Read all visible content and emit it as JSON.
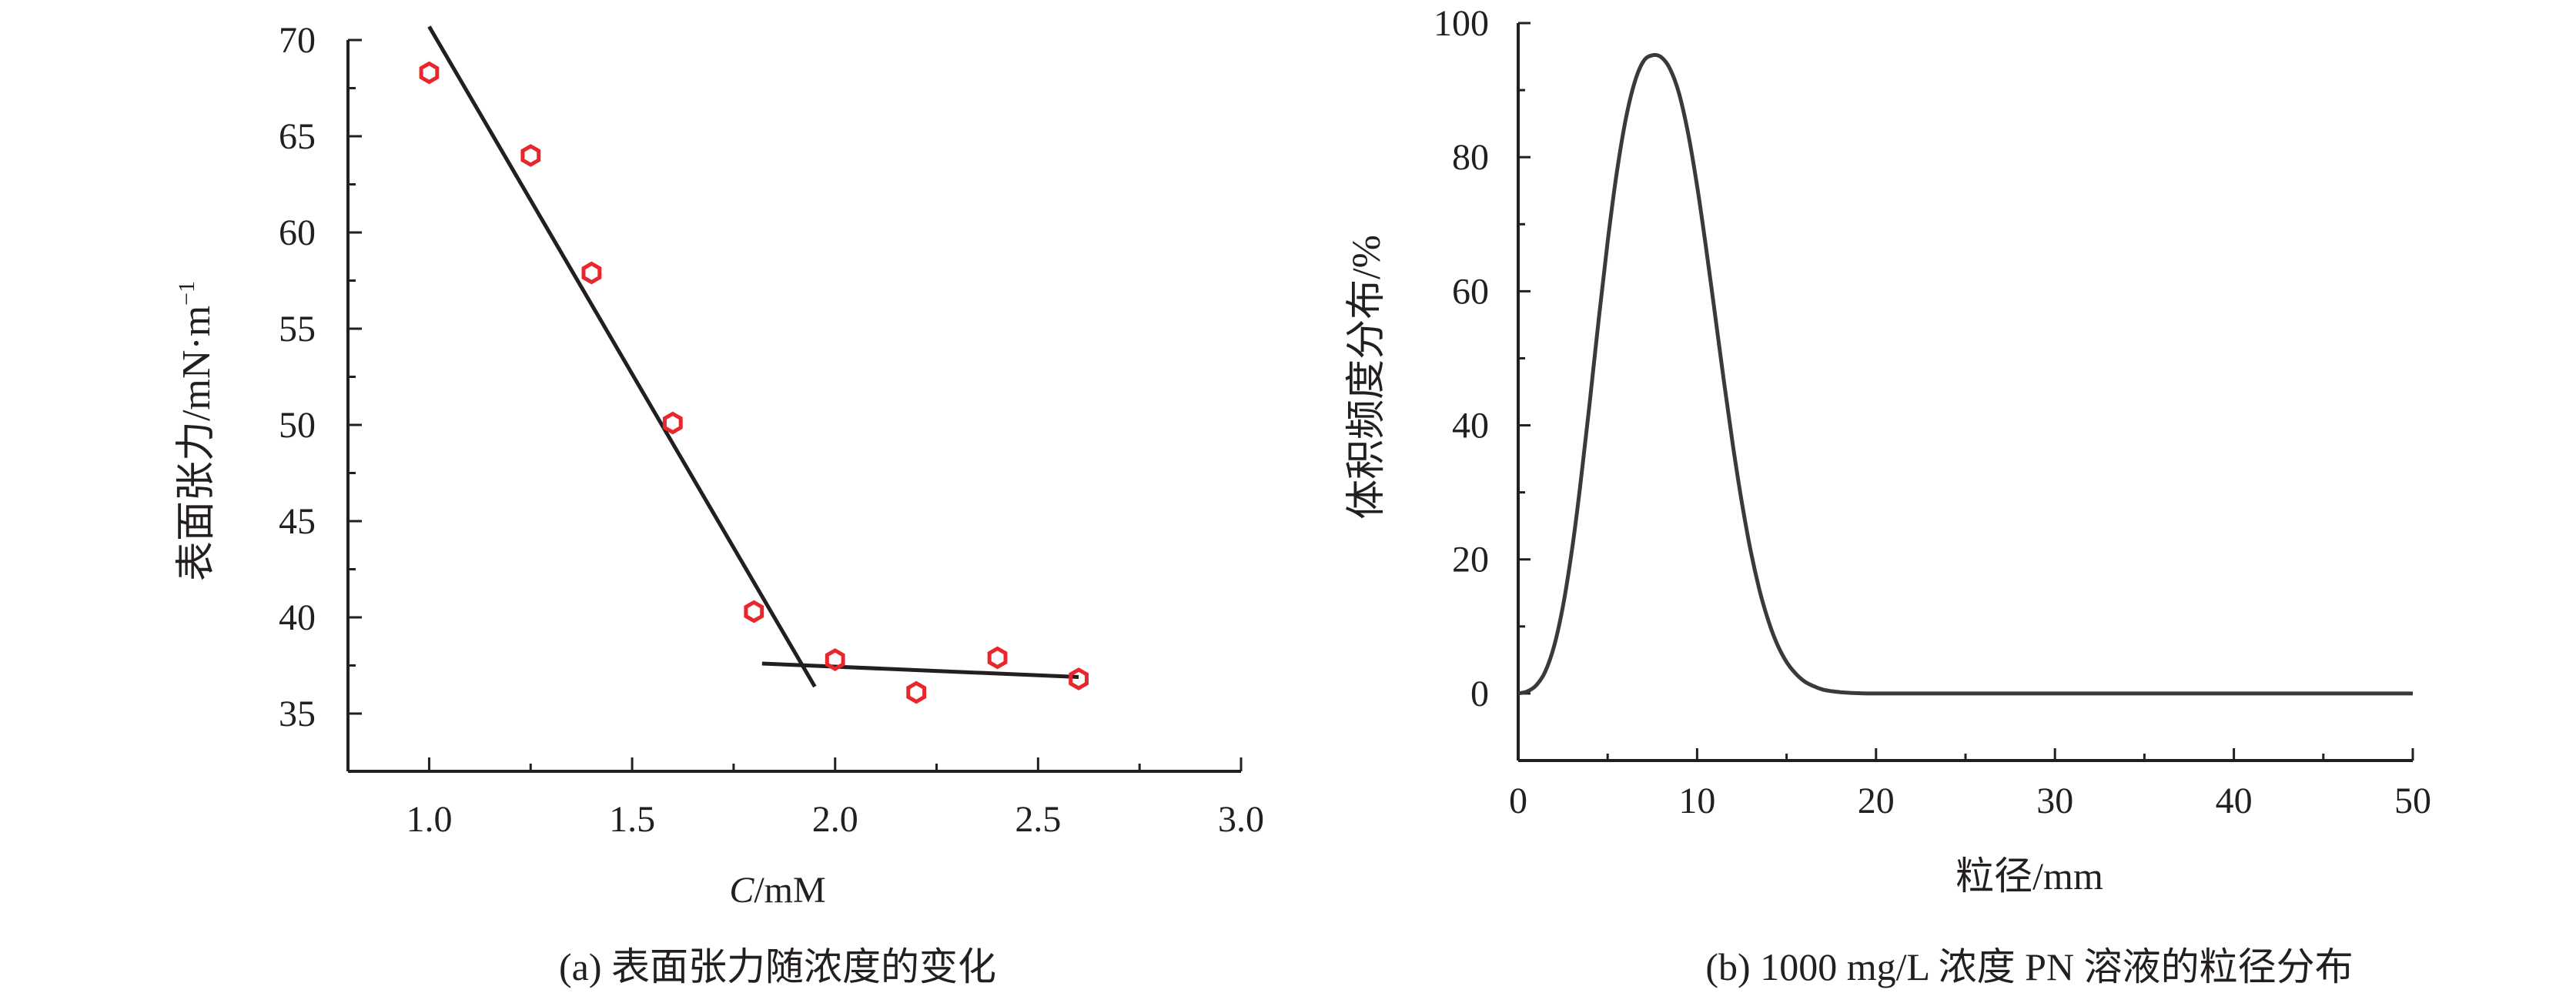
{
  "figure": {
    "panels": [
      {
        "caption": "(a) 表面张力随浓度的变化"
      },
      {
        "caption": "(b) 1000 mg/L 浓度 PN 溶液的粒径分布"
      }
    ]
  },
  "chart_data": [
    {
      "type": "scatter",
      "title": "",
      "xlabel_italic": "C",
      "xlabel_rest": "/mM",
      "ylabel": "表面张力/mN·m",
      "ylabel_superscript": "−1",
      "xlim": [
        0.8,
        3.0
      ],
      "ylim": [
        32,
        70
      ],
      "xticks": [
        1.0,
        1.5,
        2.0,
        2.5,
        3.0
      ],
      "xtick_labels": [
        "1.0",
        "1.5",
        "2.0",
        "2.5",
        "3.0"
      ],
      "yticks": [
        35,
        40,
        45,
        50,
        55,
        60,
        65,
        70
      ],
      "ytick_labels": [
        "35",
        "40",
        "45",
        "50",
        "55",
        "60",
        "65",
        "70"
      ],
      "grid": false,
      "marker": "hexagon",
      "marker_color": "#e8262b",
      "line_color": "#231f20",
      "points": {
        "x": [
          1.0,
          1.25,
          1.4,
          1.6,
          1.8,
          2.0,
          2.2,
          2.4,
          2.6
        ],
        "y": [
          68.3,
          64.0,
          57.9,
          50.1,
          40.3,
          37.8,
          36.1,
          37.9,
          36.8
        ]
      },
      "fit_lines": [
        {
          "x": [
            1.0,
            1.95
          ],
          "y": [
            70.7,
            36.4
          ]
        },
        {
          "x": [
            1.82,
            2.6
          ],
          "y": [
            37.6,
            36.9
          ]
        }
      ]
    },
    {
      "type": "line",
      "title": "",
      "xlabel": "粒径/mm",
      "ylabel": "体积频度分布/%",
      "xlim": [
        0,
        50
      ],
      "ylim": [
        -10,
        100
      ],
      "xticks": [
        0,
        10,
        20,
        30,
        40,
        50
      ],
      "xtick_labels": [
        "0",
        "10",
        "20",
        "30",
        "40",
        "50"
      ],
      "yticks": [
        0,
        20,
        40,
        60,
        80,
        100
      ],
      "ytick_labels": [
        "0",
        "20",
        "40",
        "60",
        "80",
        "100"
      ],
      "grid": false,
      "line_color": "#3a3a3a",
      "series": [
        {
          "x": [
            0,
            0.5,
            1,
            1.5,
            2,
            2.5,
            3,
            3.5,
            4,
            4.5,
            5,
            5.5,
            6,
            6.5,
            7,
            7.5,
            8,
            8.5,
            9,
            9.5,
            10,
            10.5,
            11,
            11.5,
            12,
            12.5,
            13,
            13.5,
            14,
            14.5,
            15,
            15.5,
            16,
            16.5,
            17,
            17.5,
            18,
            18.5,
            19,
            20,
            25,
            30,
            35,
            40,
            45,
            50
          ],
          "y": [
            0,
            0.3,
            1.2,
            3.2,
            7.0,
            13.0,
            21.3,
            31.7,
            43.5,
            55.8,
            67.4,
            77.5,
            85.5,
            91.1,
            94.3,
            95.2,
            94.9,
            93.1,
            89.4,
            83.5,
            75.7,
            66.5,
            56.6,
            46.5,
            37.0,
            28.5,
            21.2,
            15.3,
            10.7,
            7.2,
            4.7,
            3.0,
            1.8,
            1.1,
            0.6,
            0.35,
            0.2,
            0.1,
            0.05,
            0,
            0,
            0,
            0,
            0,
            0,
            0
          ]
        }
      ]
    }
  ]
}
